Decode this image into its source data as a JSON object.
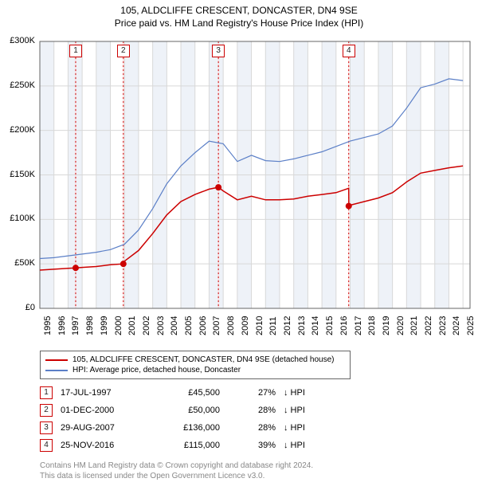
{
  "title": "105, ALDCLIFFE CRESCENT, DONCASTER, DN4 9SE",
  "subtitle": "Price paid vs. HM Land Registry's House Price Index (HPI)",
  "chart": {
    "type": "line",
    "background_color": "#ffffff",
    "grid_color": "#d8d8d8",
    "band_color": "#eef2f8",
    "marker_border": "#cc0000",
    "marker_text": "#222222",
    "tick_font": 11,
    "x_years": [
      1995,
      1996,
      1997,
      1998,
      1999,
      2000,
      2001,
      2002,
      2003,
      2004,
      2005,
      2006,
      2007,
      2008,
      2009,
      2010,
      2011,
      2012,
      2013,
      2014,
      2015,
      2016,
      2017,
      2018,
      2019,
      2020,
      2021,
      2022,
      2023,
      2024,
      2025
    ],
    "y_ticks": [
      0,
      50000,
      100000,
      150000,
      200000,
      250000,
      300000
    ],
    "y_labels": [
      "£0",
      "£50K",
      "£100K",
      "£150K",
      "£200K",
      "£250K",
      "£300K"
    ],
    "ylim": [
      0,
      300000
    ],
    "xlim": [
      1995,
      2025.5
    ],
    "sale_line_colors": [
      "#ffcccc",
      "#cc0000"
    ],
    "event_years": [
      1997.54,
      2000.92,
      2007.66,
      2016.9
    ],
    "series": [
      {
        "name": "105, ALDCLIFFE CRESCENT, DONCASTER, DN4 9SE (detached house)",
        "color": "#cc0000",
        "line_width": 1.5,
        "points": [
          [
            1995,
            43000
          ],
          [
            1996,
            44000
          ],
          [
            1997,
            45000
          ],
          [
            1997.54,
            45500
          ],
          [
            1998,
            46000
          ],
          [
            1999,
            47000
          ],
          [
            2000,
            49000
          ],
          [
            2000.92,
            50000
          ],
          [
            2001,
            53000
          ],
          [
            2002,
            65000
          ],
          [
            2003,
            84000
          ],
          [
            2004,
            105000
          ],
          [
            2005,
            120000
          ],
          [
            2006,
            128000
          ],
          [
            2007,
            134000
          ],
          [
            2007.66,
            136000
          ],
          [
            2008,
            132000
          ],
          [
            2009,
            122000
          ],
          [
            2010,
            126000
          ],
          [
            2011,
            122000
          ],
          [
            2012,
            122000
          ],
          [
            2013,
            123000
          ],
          [
            2014,
            126000
          ],
          [
            2015,
            128000
          ],
          [
            2016,
            130000
          ],
          [
            2016.9,
            135000
          ],
          [
            2016.91,
            115000
          ],
          [
            2017,
            116000
          ],
          [
            2018,
            120000
          ],
          [
            2019,
            124000
          ],
          [
            2020,
            130000
          ],
          [
            2021,
            142000
          ],
          [
            2022,
            152000
          ],
          [
            2023,
            155000
          ],
          [
            2024,
            158000
          ],
          [
            2025,
            160000
          ]
        ],
        "sale_points": [
          [
            1997.54,
            45500
          ],
          [
            2000.92,
            50000
          ],
          [
            2007.66,
            136000
          ],
          [
            2016.9,
            115000
          ]
        ]
      },
      {
        "name": "HPI: Average price, detached house, Doncaster",
        "color": "#5b7fc7",
        "line_width": 1.2,
        "points": [
          [
            1995,
            56000
          ],
          [
            1996,
            57000
          ],
          [
            1997,
            59000
          ],
          [
            1998,
            61000
          ],
          [
            1999,
            63000
          ],
          [
            2000,
            66000
          ],
          [
            2001,
            72000
          ],
          [
            2002,
            88000
          ],
          [
            2003,
            112000
          ],
          [
            2004,
            140000
          ],
          [
            2005,
            160000
          ],
          [
            2006,
            175000
          ],
          [
            2007,
            188000
          ],
          [
            2008,
            185000
          ],
          [
            2009,
            165000
          ],
          [
            2010,
            172000
          ],
          [
            2011,
            166000
          ],
          [
            2012,
            165000
          ],
          [
            2013,
            168000
          ],
          [
            2014,
            172000
          ],
          [
            2015,
            176000
          ],
          [
            2016,
            182000
          ],
          [
            2017,
            188000
          ],
          [
            2018,
            192000
          ],
          [
            2019,
            196000
          ],
          [
            2020,
            205000
          ],
          [
            2021,
            225000
          ],
          [
            2022,
            248000
          ],
          [
            2023,
            252000
          ],
          [
            2024,
            258000
          ],
          [
            2025,
            256000
          ]
        ]
      }
    ]
  },
  "legend": [
    {
      "label": "105, ALDCLIFFE CRESCENT, DONCASTER, DN4 9SE (detached house)",
      "color": "#cc0000"
    },
    {
      "label": "HPI: Average price, detached house, Doncaster",
      "color": "#5b7fc7"
    }
  ],
  "events": [
    {
      "n": "1",
      "date": "17-JUL-1997",
      "price": "£45,500",
      "pct": "27%",
      "arrow": "↓ HPI"
    },
    {
      "n": "2",
      "date": "01-DEC-2000",
      "price": "£50,000",
      "pct": "28%",
      "arrow": "↓ HPI"
    },
    {
      "n": "3",
      "date": "29-AUG-2007",
      "price": "£136,000",
      "pct": "28%",
      "arrow": "↓ HPI"
    },
    {
      "n": "4",
      "date": "25-NOV-2016",
      "price": "£115,000",
      "pct": "39%",
      "arrow": "↓ HPI"
    }
  ],
  "footer": {
    "line1": "Contains HM Land Registry data © Crown copyright and database right 2024.",
    "line2": "This data is licensed under the Open Government Licence v3.0."
  }
}
